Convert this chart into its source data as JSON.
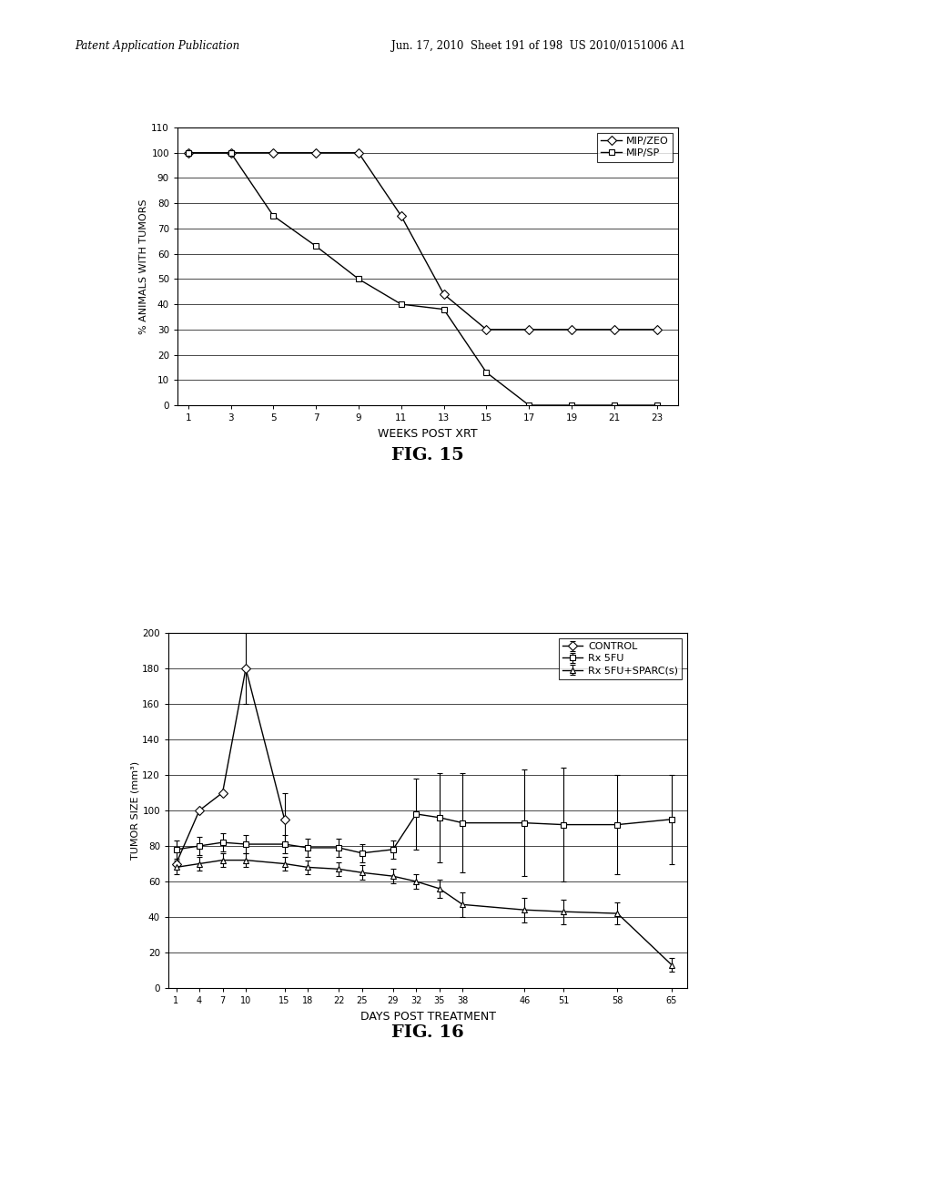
{
  "fig15": {
    "xlabel": "WEEKS POST XRT",
    "ylabel": "% ANIMALS WITH TUMORS",
    "ylim": [
      0,
      110
    ],
    "yticks": [
      0,
      10,
      20,
      30,
      40,
      50,
      60,
      70,
      80,
      90,
      100,
      110
    ],
    "xticks": [
      1,
      3,
      5,
      7,
      9,
      11,
      13,
      15,
      17,
      19,
      21,
      23
    ],
    "series": [
      {
        "label": "MIP/ZEO",
        "marker": "D",
        "x": [
          1,
          3,
          5,
          7,
          9,
          11,
          13,
          15,
          17,
          19,
          21,
          23
        ],
        "y": [
          100,
          100,
          100,
          100,
          100,
          75,
          44,
          30,
          30,
          30,
          30,
          30
        ]
      },
      {
        "label": "MIP/SP",
        "marker": "s",
        "x": [
          1,
          3,
          5,
          7,
          9,
          11,
          13,
          15,
          17,
          19,
          21,
          23
        ],
        "y": [
          100,
          100,
          75,
          63,
          50,
          40,
          38,
          13,
          0,
          0,
          0,
          0
        ]
      }
    ]
  },
  "fig16": {
    "xlabel": "DAYS POST TREATMENT",
    "ylabel": "TUMOR SIZE (mm³)",
    "ylim": [
      0,
      200
    ],
    "yticks": [
      0,
      20,
      40,
      60,
      80,
      100,
      120,
      140,
      160,
      180,
      200
    ],
    "xticks": [
      1,
      4,
      7,
      10,
      15,
      18,
      22,
      25,
      29,
      32,
      35,
      38,
      46,
      51,
      58,
      65
    ],
    "series": [
      {
        "label": "CONTROL",
        "marker": "D",
        "x": [
          1,
          4,
          7,
          10,
          15
        ],
        "y": [
          70,
          100,
          110,
          180,
          95
        ],
        "yerr": [
          0,
          0,
          0,
          20,
          15
        ]
      },
      {
        "label": "Rx 5FU",
        "marker": "s",
        "x": [
          1,
          4,
          7,
          10,
          15,
          18,
          22,
          25,
          29,
          32,
          35,
          38,
          46,
          51,
          58,
          65
        ],
        "y": [
          78,
          80,
          82,
          81,
          81,
          79,
          79,
          76,
          78,
          98,
          96,
          93,
          93,
          92,
          92,
          95
        ],
        "yerr": [
          5,
          5,
          5,
          5,
          5,
          5,
          5,
          5,
          5,
          20,
          25,
          28,
          30,
          32,
          28,
          25
        ]
      },
      {
        "label": "Rx 5FU+SPARC(s)",
        "marker": "^",
        "x": [
          1,
          4,
          7,
          10,
          15,
          18,
          22,
          25,
          29,
          32,
          35,
          38,
          46,
          51,
          58,
          65
        ],
        "y": [
          68,
          70,
          72,
          72,
          70,
          68,
          67,
          65,
          63,
          60,
          56,
          47,
          44,
          43,
          42,
          13
        ],
        "yerr": [
          4,
          4,
          4,
          4,
          4,
          4,
          4,
          4,
          4,
          4,
          5,
          7,
          7,
          7,
          6,
          4
        ]
      }
    ]
  },
  "header_left": "Patent Application Publication",
  "header_mid": "Jun. 17, 2010  Sheet 191 of 198  US 2010/0151006 A1",
  "bg_color": "#ffffff",
  "line_color": "#000000",
  "fig15_caption": "FIG. 15",
  "fig16_caption": "FIG. 16"
}
